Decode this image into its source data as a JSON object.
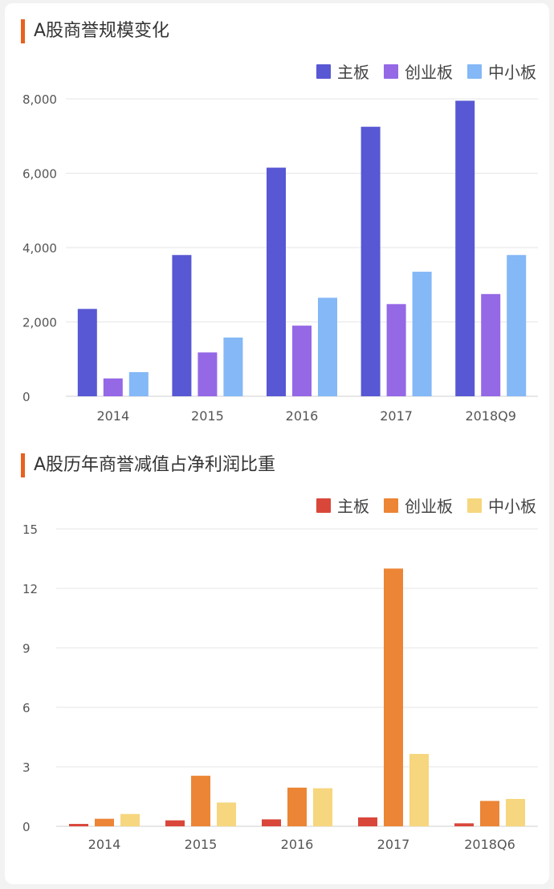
{
  "chart_data": [
    {
      "type": "bar",
      "title": "A股商誉规模变化",
      "categories": [
        "2014",
        "2015",
        "2016",
        "2017",
        "2018Q9"
      ],
      "series": [
        {
          "name": "主板",
          "color": "#5858d4",
          "values": [
            2350,
            3800,
            6150,
            7250,
            7950
          ]
        },
        {
          "name": "创业板",
          "color": "#9568e6",
          "values": [
            480,
            1180,
            1900,
            2480,
            2750
          ]
        },
        {
          "name": "中小板",
          "color": "#84b8f6",
          "values": [
            650,
            1580,
            2650,
            3350,
            3800
          ]
        }
      ],
      "ylim": [
        0,
        8000
      ],
      "yticks": [
        0,
        2000,
        4000,
        6000,
        8000
      ],
      "ytick_labels": [
        "0",
        "2,000",
        "4,000",
        "6,000",
        "8,000"
      ],
      "xlabel": "",
      "ylabel": "",
      "grid": true,
      "legend": "top-right"
    },
    {
      "type": "bar",
      "title": "A股历年商誉减值占净利润比重",
      "categories": [
        "2014",
        "2015",
        "2016",
        "2017",
        "2018Q6"
      ],
      "series": [
        {
          "name": "主板",
          "color": "#d9473a",
          "values": [
            0.12,
            0.3,
            0.35,
            0.45,
            0.15
          ]
        },
        {
          "name": "创业板",
          "color": "#ec8535",
          "values": [
            0.38,
            2.55,
            1.95,
            13.0,
            1.28
          ]
        },
        {
          "name": "中小板",
          "color": "#f6d67e",
          "values": [
            0.62,
            1.2,
            1.92,
            3.65,
            1.38
          ]
        }
      ],
      "ylim": [
        0,
        15
      ],
      "yticks": [
        0,
        3,
        6,
        9,
        12,
        15
      ],
      "ytick_labels": [
        "0",
        "3",
        "6",
        "9",
        "12",
        "15"
      ],
      "xlabel": "",
      "ylabel": "",
      "grid": true,
      "legend": "top-right"
    }
  ]
}
